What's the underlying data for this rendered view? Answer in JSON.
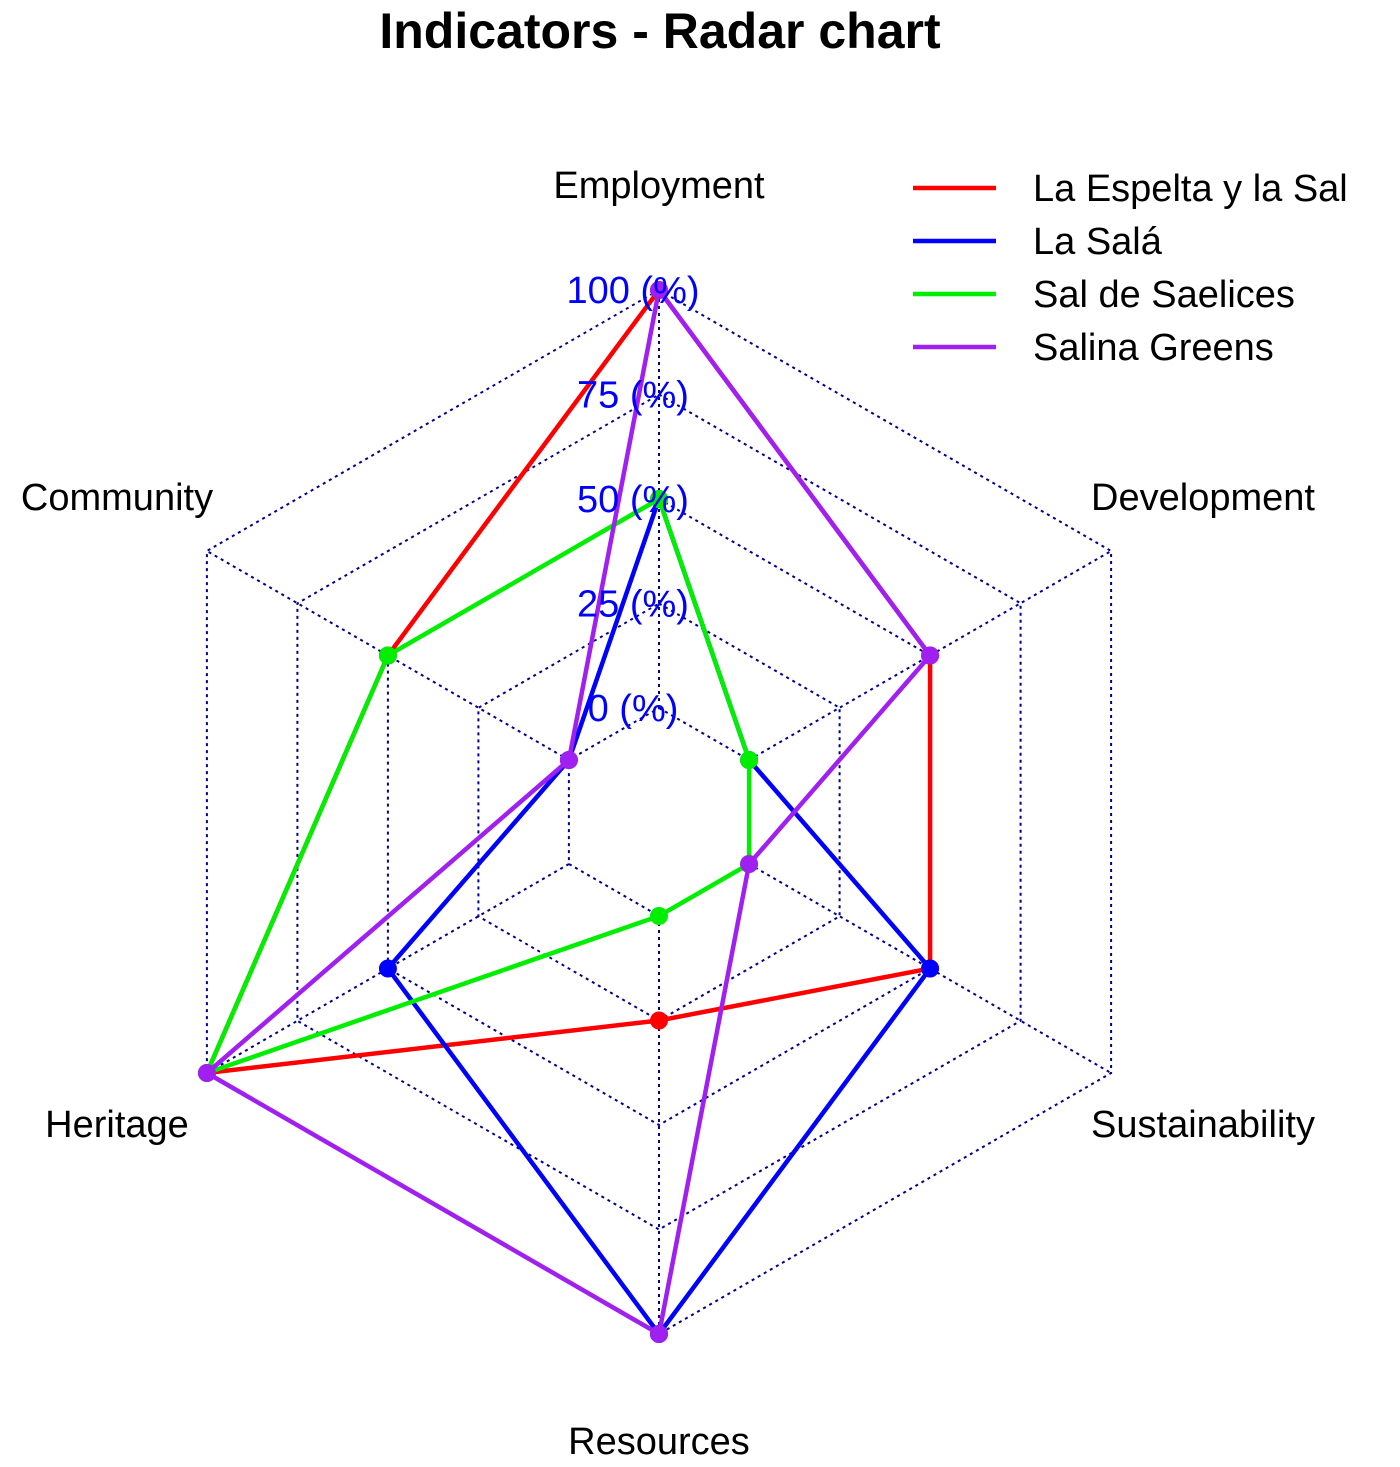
{
  "chart_data": {
    "type": "radar",
    "title": "Indicators - Radar chart",
    "axes": [
      "Employment",
      "Development",
      "Sustainability",
      "Resources",
      "Heritage",
      "Community"
    ],
    "ticks": [
      "0 (%)",
      "25 (%)",
      "50 (%)",
      "75 (%)",
      "100 (%)"
    ],
    "tick_values": [
      0,
      25,
      50,
      75,
      100
    ],
    "range": [
      0,
      100
    ],
    "grid": true,
    "grid_color": "#00008b",
    "tick_label_color": "#0000ff",
    "legend_position": "top-right",
    "series": [
      {
        "name": "La Espelta y la Sal",
        "color": "#ff0000",
        "values": [
          100,
          50,
          50,
          25,
          100,
          50
        ]
      },
      {
        "name": "La Salá",
        "color": "#0000ff",
        "values": [
          50,
          0,
          50,
          100,
          50,
          0
        ]
      },
      {
        "name": "Sal de Saelices",
        "color": "#00ee00",
        "values": [
          50,
          0,
          0,
          0,
          100,
          50
        ]
      },
      {
        "name": "Salina Greens",
        "color": "#a020f0",
        "values": [
          100,
          50,
          0,
          100,
          100,
          0
        ]
      }
    ]
  }
}
